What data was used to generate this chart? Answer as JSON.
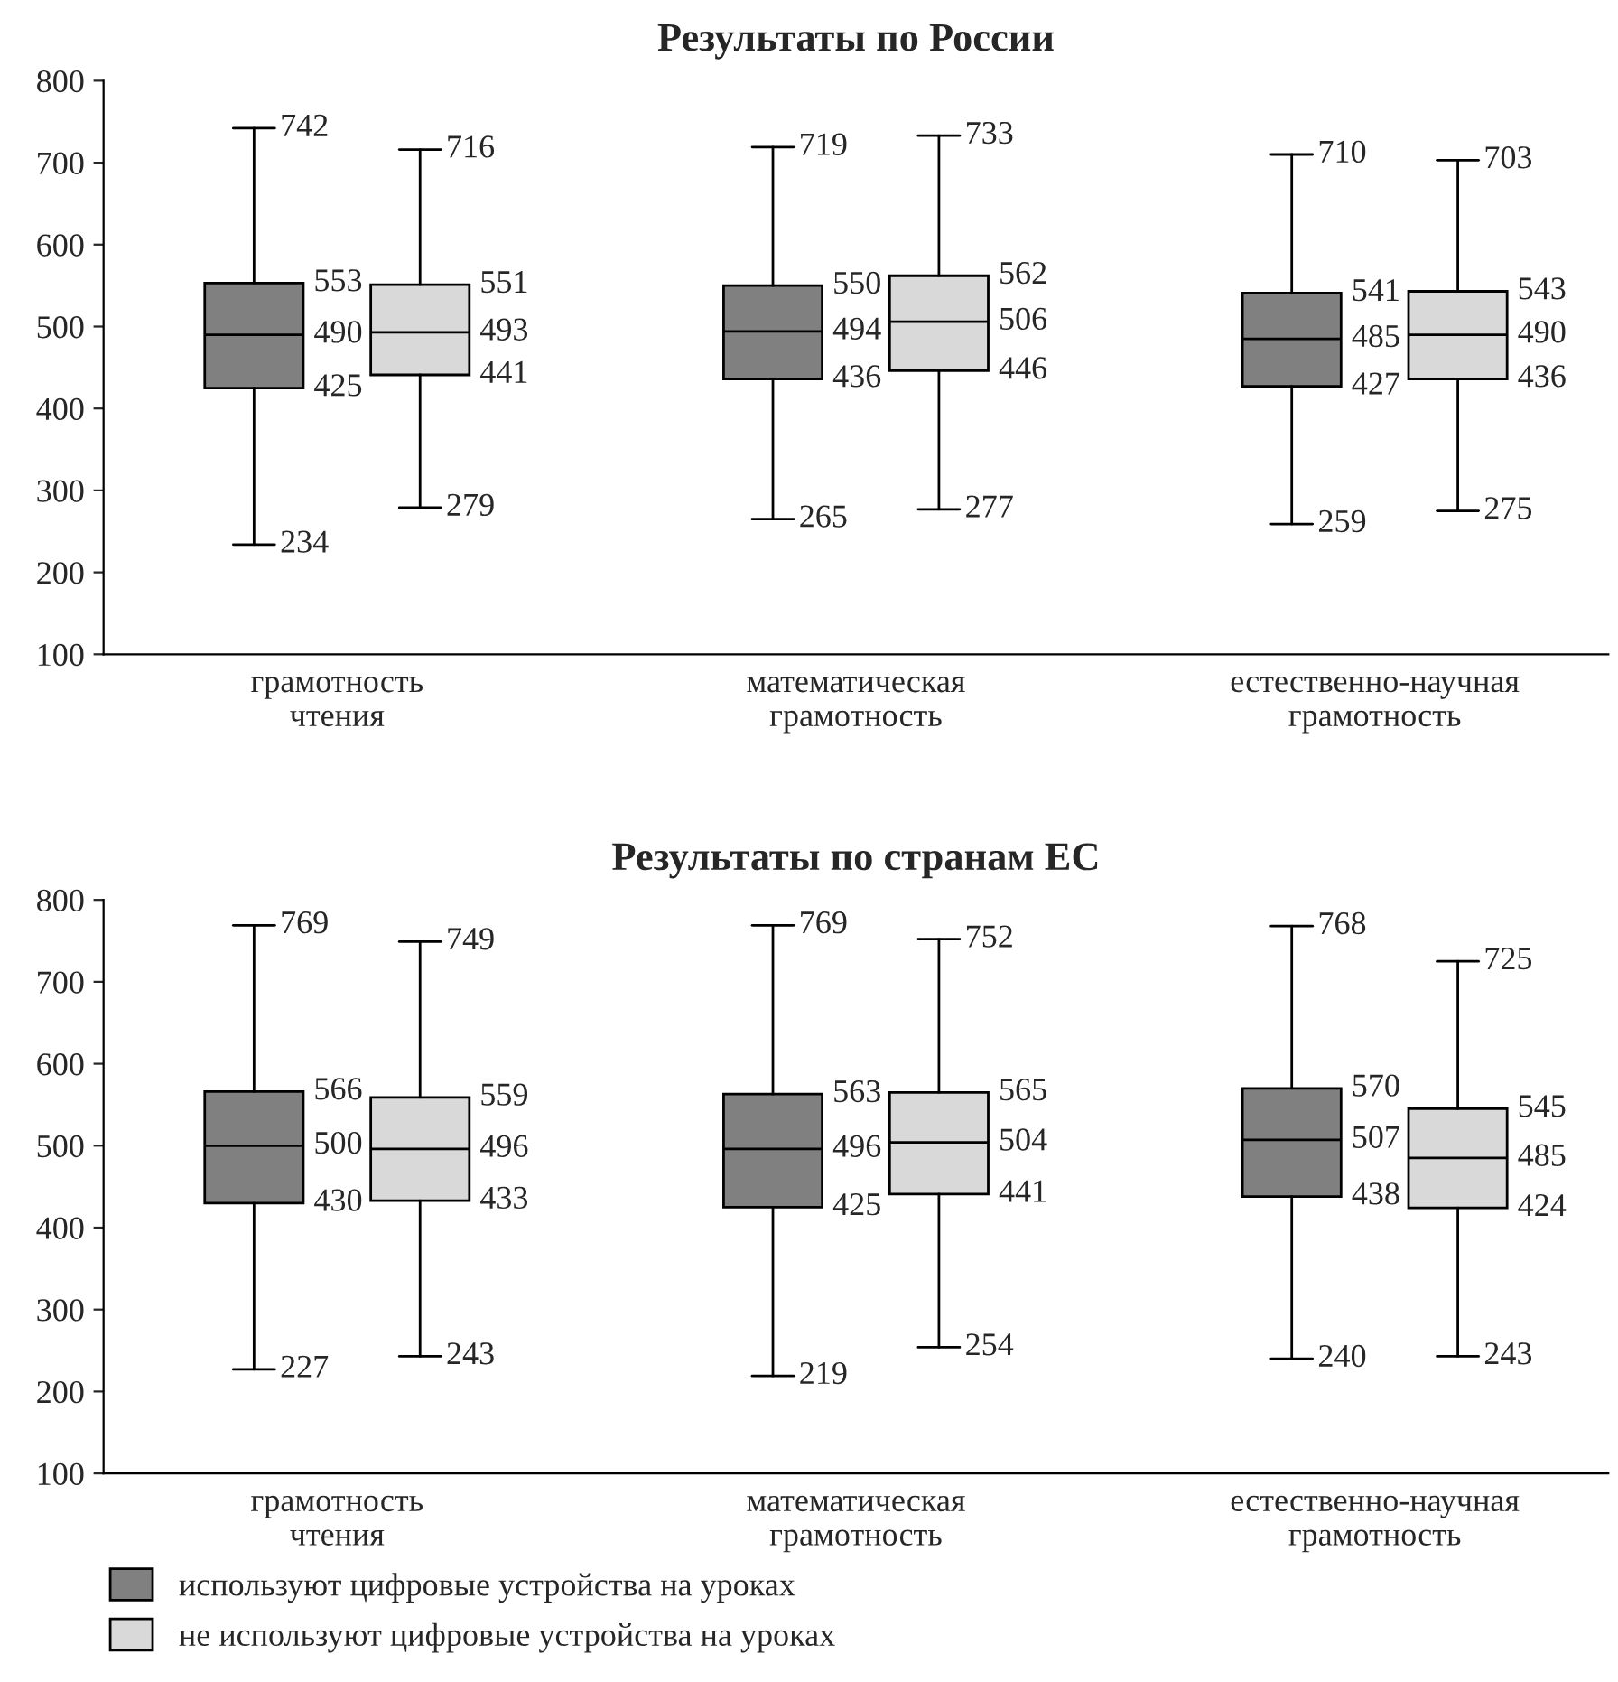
{
  "chart_data": [
    {
      "type": "box",
      "title": "Результаты по России",
      "categories": [
        "грамотность\nчтения",
        "математическая\nграмотность",
        "естественно-научная\nграмотность"
      ],
      "ylim": [
        100,
        800
      ],
      "yticks": [
        100,
        200,
        300,
        400,
        500,
        600,
        700,
        800
      ],
      "legend": false,
      "series": [
        {
          "color": "#808080",
          "boxes": [
            {
              "low": 234,
              "q1": 425,
              "median": 490,
              "q3": 553,
              "high": 742
            },
            {
              "low": 265,
              "q1": 436,
              "median": 494,
              "q3": 550,
              "high": 719
            },
            {
              "low": 259,
              "q1": 427,
              "median": 485,
              "q3": 541,
              "high": 710
            }
          ],
          "value_labels": [
            [
              "742",
              "553",
              "490",
              "425",
              "234"
            ],
            [
              "719",
              "550",
              "494",
              "436",
              "265"
            ],
            [
              "710",
              "541",
              "485",
              "427",
              "259"
            ]
          ]
        },
        {
          "color": "#d9d9d9",
          "boxes": [
            {
              "low": 279,
              "q1": 441,
              "median": 493,
              "q3": 551,
              "high": 716
            },
            {
              "low": 277,
              "q1": 446,
              "median": 506,
              "q3": 562,
              "high": 733
            },
            {
              "low": 275,
              "q1": 436,
              "median": 490,
              "q3": 543,
              "high": 703
            }
          ],
          "value_labels": [
            [
              "716",
              "551",
              "493",
              "441",
              "279"
            ],
            [
              "733",
              "562",
              "506",
              "446",
              "277"
            ],
            [
              "703",
              "543",
              "490",
              "436",
              "275"
            ]
          ]
        }
      ]
    },
    {
      "type": "box",
      "title": "Результаты по странам ЕС",
      "categories": [
        "грамотность\nчтения",
        "математическая\nграмотность",
        "естественно-научная\nграмотность"
      ],
      "ylim": [
        100,
        800
      ],
      "yticks": [
        100,
        200,
        300,
        400,
        500,
        600,
        700,
        800
      ],
      "legend": "bottom",
      "series": [
        {
          "name": "используют цифровые устройства на уроках",
          "color": "#808080",
          "boxes": [
            {
              "low": 227,
              "q1": 430,
              "median": 500,
              "q3": 566,
              "high": 769
            },
            {
              "low": 219,
              "q1": 425,
              "median": 496,
              "q3": 563,
              "high": 769
            },
            {
              "low": 240,
              "q1": 438,
              "median": 507,
              "q3": 570,
              "high": 768
            }
          ],
          "value_labels": [
            [
              "769",
              "566",
              "500",
              "430",
              "227"
            ],
            [
              "769",
              "563",
              "496",
              "425",
              "219"
            ],
            [
              "768",
              "570",
              "507",
              "438",
              "240"
            ]
          ]
        },
        {
          "name": "не используют цифровые устройства на уроках",
          "color": "#d9d9d9",
          "boxes": [
            {
              "low": 243,
              "q1": 433,
              "median": 496,
              "q3": 559,
              "high": 749
            },
            {
              "low": 254,
              "q1": 441,
              "median": 504,
              "q3": 565,
              "high": 752
            },
            {
              "low": 243,
              "q1": 424,
              "median": 485,
              "q3": 545,
              "high": 725
            }
          ],
          "value_labels": [
            [
              "749",
              "559",
              "496",
              "433",
              "243"
            ],
            [
              "752",
              "565",
              "504",
              "441",
              "254"
            ],
            [
              "725",
              "545",
              "485",
              "424",
              "243"
            ]
          ]
        }
      ]
    }
  ]
}
